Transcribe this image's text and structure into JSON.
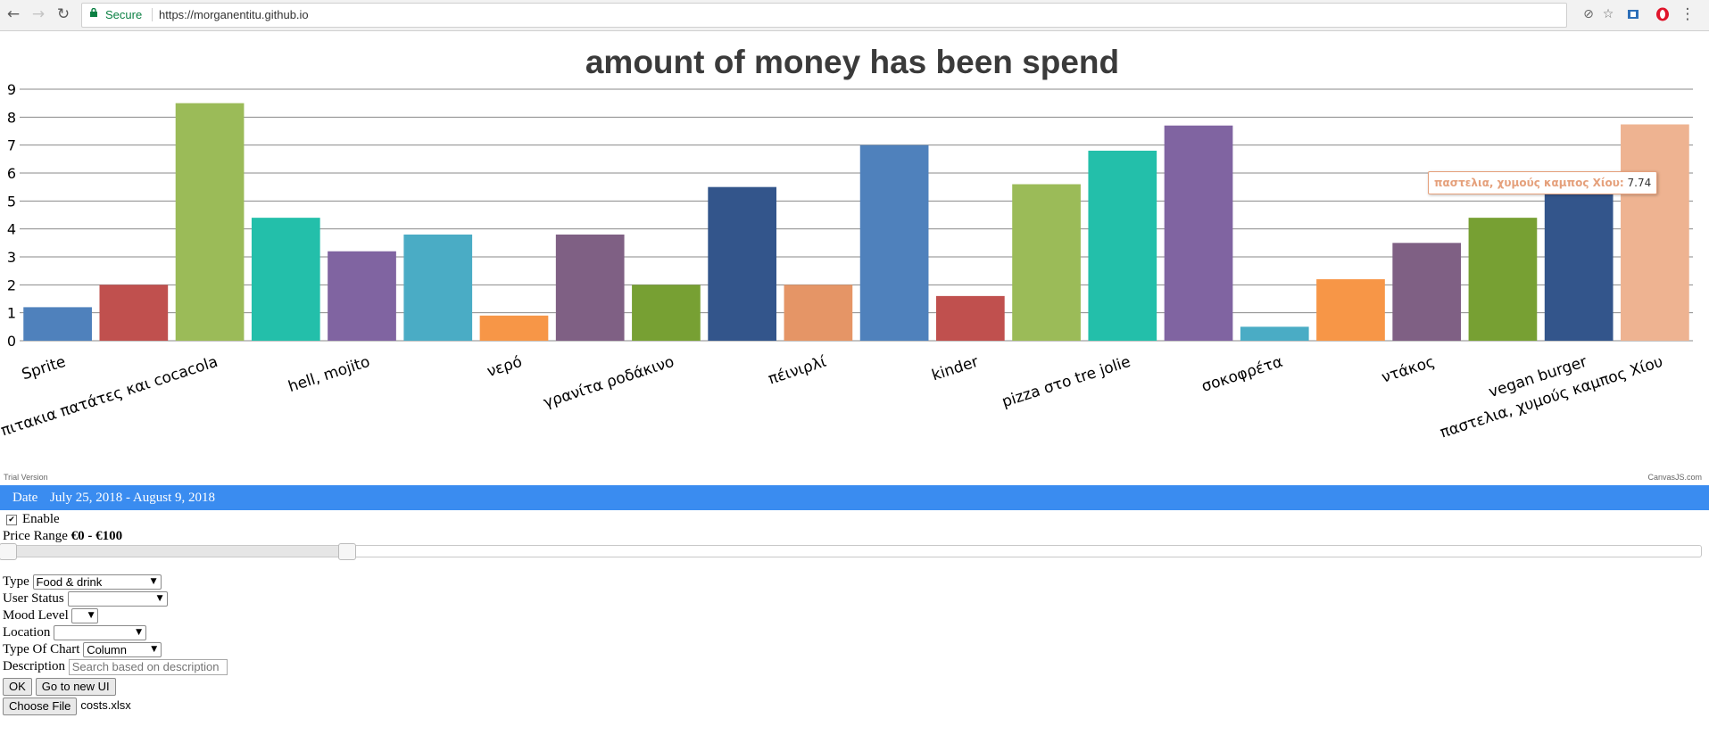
{
  "browser": {
    "secure_label": "Secure",
    "url": "https://morganentitu.github.io"
  },
  "chart_data": {
    "type": "bar",
    "title": "amount of money has been spend",
    "ylim": [
      0,
      9
    ],
    "yticks": [
      0,
      1,
      2,
      3,
      4,
      5,
      6,
      7,
      8,
      9
    ],
    "grid": true,
    "categories": [
      "Sprite",
      "",
      "α, πιτακια πατάτες και cocacola",
      "",
      "hell, mojito",
      "",
      "νερό",
      "",
      "γρανίτα ροδάκινο",
      "",
      "πέινιρλί",
      "",
      "kinder",
      "",
      "pizza στο tre jolie",
      "",
      "σοκοφρέτα",
      "",
      "ντάκος",
      "",
      "vegan burger",
      "παστελια, χυμούς καμπος Χίου"
    ],
    "values": [
      1.2,
      2.0,
      8.5,
      4.4,
      3.2,
      3.8,
      0.9,
      3.8,
      2.0,
      5.5,
      2.0,
      7.0,
      1.6,
      5.6,
      6.8,
      7.7,
      0.5,
      2.2,
      3.5,
      4.4,
      5.6,
      7.74
    ],
    "colors": [
      "#4f81bc",
      "#c0504e",
      "#9bbb58",
      "#23bfaa",
      "#8064a1",
      "#4aacc5",
      "#f79647",
      "#7f6084",
      "#77a033",
      "#33558b",
      "#e59566",
      "#4f81bc",
      "#c0504e",
      "#9bbb58",
      "#23bfaa",
      "#8064a1",
      "#4aacc5",
      "#f79647",
      "#7f6084",
      "#77a033",
      "#33558b",
      "#eeb391"
    ],
    "tooltip": {
      "label": "παστελια, χυμούς καμπος Χίου:",
      "value": "7.74"
    },
    "trial_text": "Trial Version",
    "credit_text": "CanvasJS.com"
  },
  "date_bar": {
    "label": "Date",
    "value": "July 25, 2018 - August 9, 2018"
  },
  "form": {
    "enable_label": "Enable",
    "price_label": "Price Range",
    "price_value": "€0 - €100",
    "price_range": [
      0,
      0.2
    ],
    "type_label": "Type",
    "type_value": "Food & drink",
    "user_status_label": "User Status",
    "user_status_value": "",
    "mood_label": "Mood Level",
    "mood_value": "",
    "location_label": "Location",
    "location_value": "",
    "chart_type_label": "Type Of Chart",
    "chart_type_value": "Column",
    "description_label": "Description",
    "description_placeholder": "Search based on description",
    "ok_label": "OK",
    "new_ui_label": "Go to new UI",
    "choose_file_label": "Choose File",
    "file_name": "costs.xlsx"
  }
}
